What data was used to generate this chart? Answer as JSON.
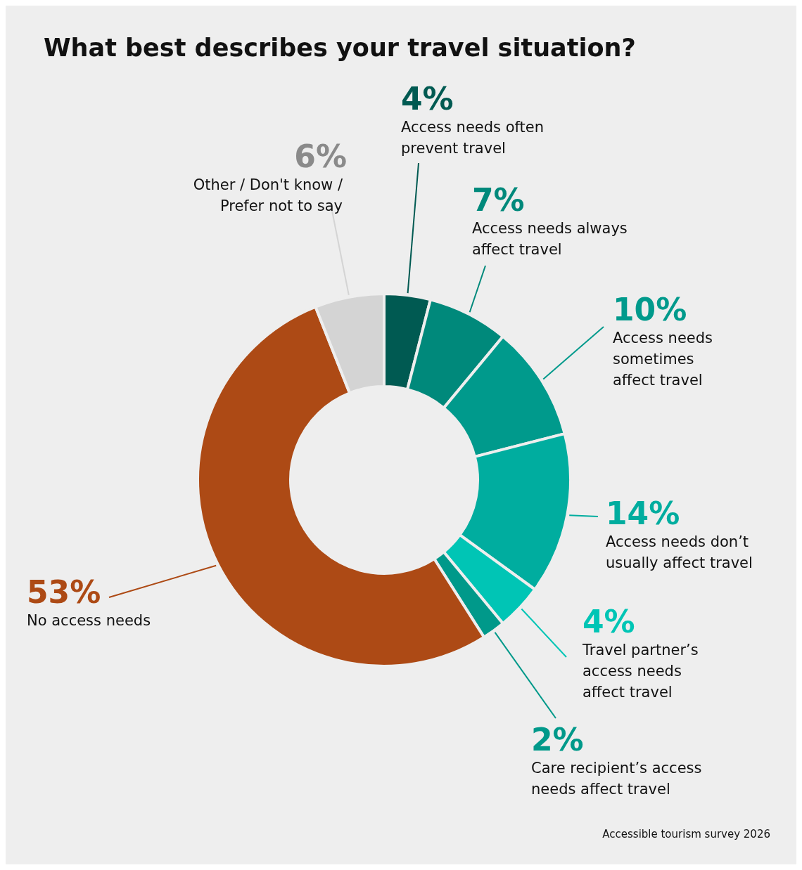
{
  "chart_data": {
    "type": "donut",
    "title": "What best describes your travel situation?",
    "categories": [
      "Access needs often prevent travel",
      "Access needs always affect travel",
      "Access needs sometimes affect travel",
      "Access needs don’t usually affect travel",
      "Travel partner’s access needs affect travel",
      "Care recipient’s access needs affect travel",
      "No access needs",
      "Other / Don't know / Prefer not to say"
    ],
    "values": [
      4,
      7,
      10,
      14,
      4,
      2,
      53,
      6
    ],
    "value_labels": [
      "4%",
      "7%",
      "10%",
      "14%",
      "4%",
      "2%",
      "53%",
      "6%"
    ],
    "colors": [
      "#005a52",
      "#00897b",
      "#009a8c",
      "#00ad9f",
      "#00c5b5",
      "#00998a",
      "#ad4a15",
      "#d4d4d4"
    ],
    "annotations": [
      "Accessible tourism survey 2026"
    ]
  }
}
